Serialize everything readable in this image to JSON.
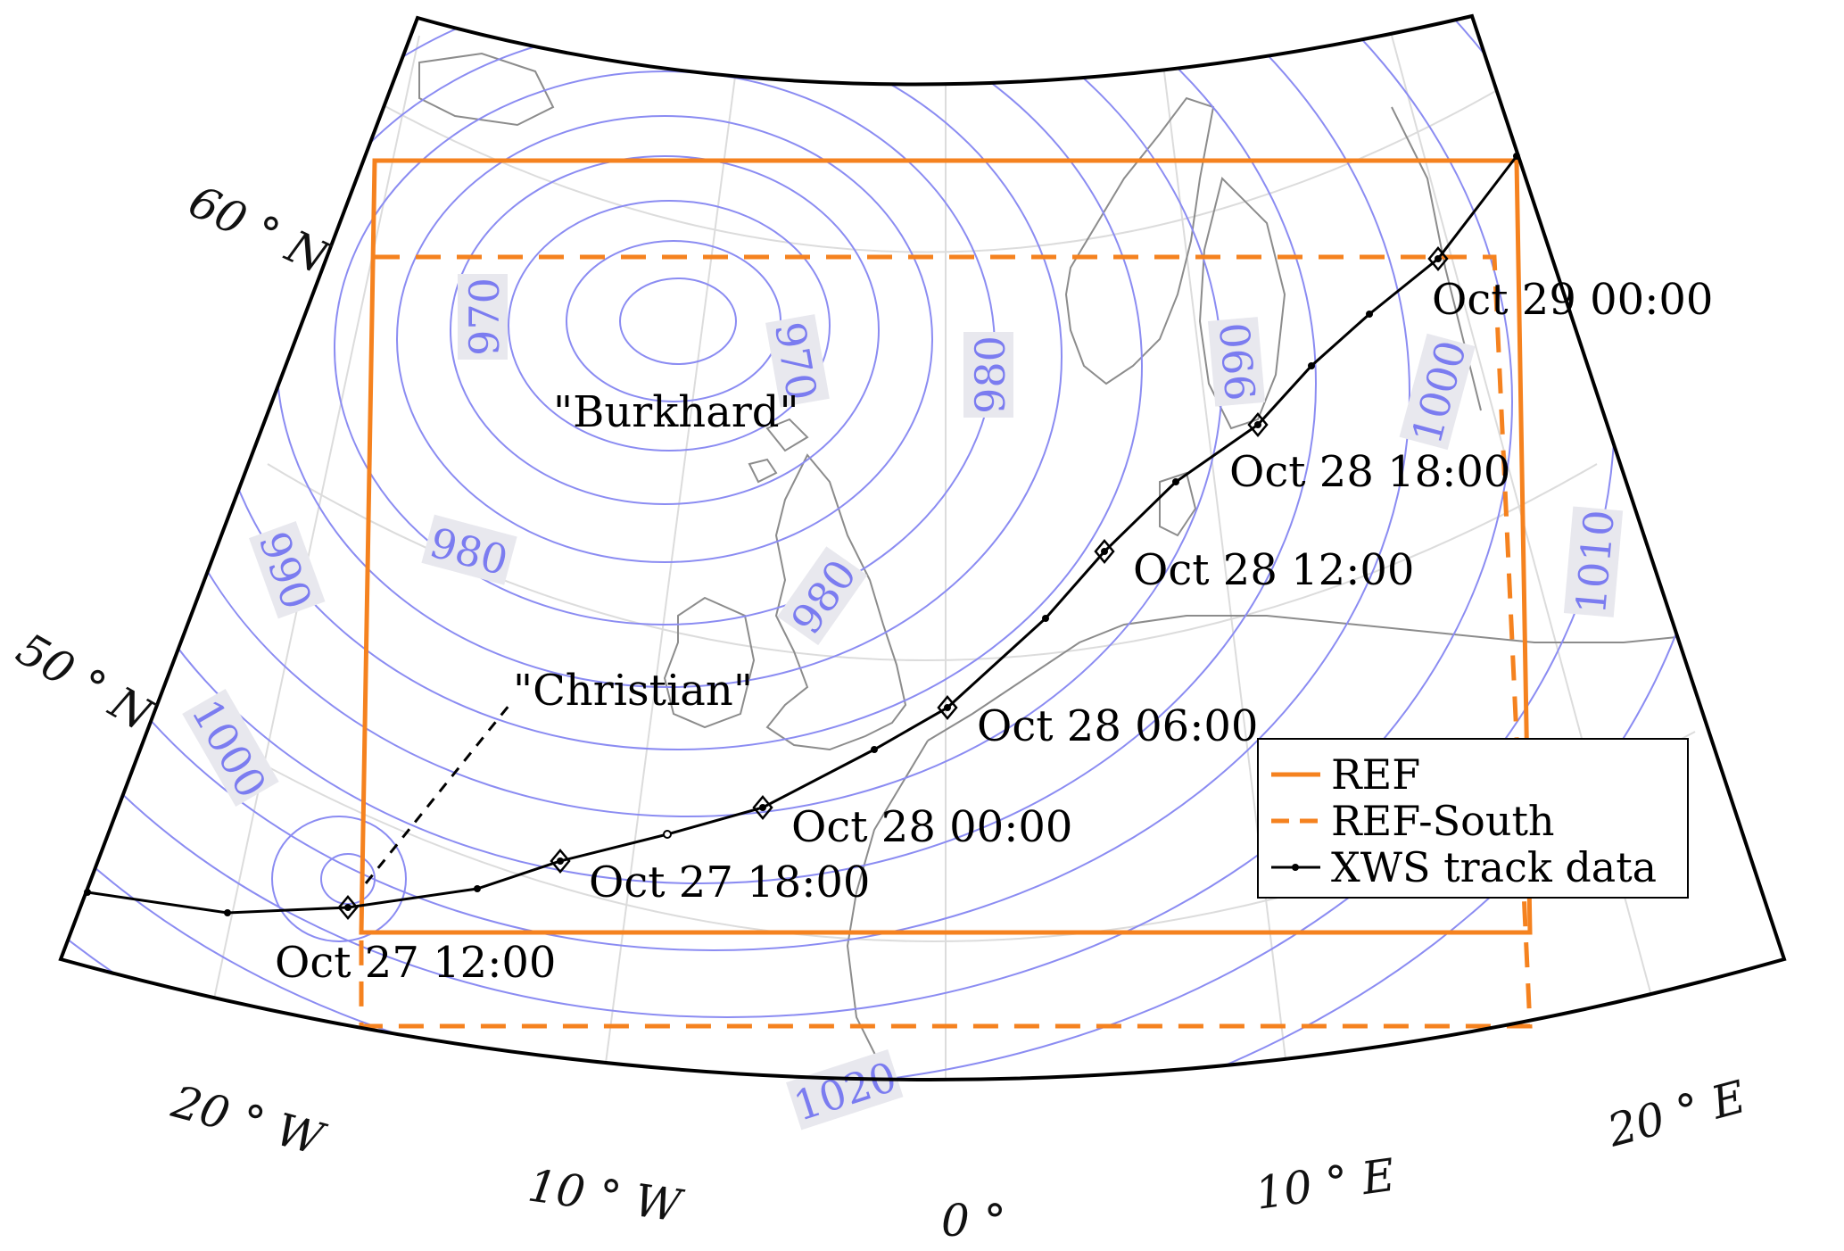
{
  "colors": {
    "isobar": "#8b8cf2",
    "isobar_label": "#7b7cf0",
    "isobar_label_bg": "#e8e8ee",
    "ref_box": "#f5821f",
    "track": "#000000",
    "coast": "#8c8c8c",
    "graticule": "#dcdcdc"
  },
  "graticule_labels": {
    "lat_60": "60 ° N",
    "lat_50": "50 ° N",
    "lon_20w": "20 ° W",
    "lon_10w": "10 ° W",
    "lon_0": "0 °",
    "lon_10e": "10 ° E",
    "lon_20e": "20 ° E"
  },
  "storms": {
    "burkhard": "\"Burkhard\"",
    "christian": "\"Christian\""
  },
  "track_times": {
    "t0": "Oct 27 12:00",
    "t1": "Oct 27 18:00",
    "t2": "Oct 28 00:00",
    "t3": "Oct 28 06:00",
    "t4": "Oct 28 12:00",
    "t5": "Oct 28 18:00",
    "t6": "Oct 29 00:00"
  },
  "isobar_labels": {
    "l970a": "970",
    "l970b": "970",
    "l980a": "980",
    "l980b": "980",
    "l980c": "980",
    "l990a": "990",
    "l990b": "990",
    "l1000a": "1000",
    "l1000b": "1000",
    "l1010": "1010",
    "l1020": "1020"
  },
  "legend": {
    "ref": "REF",
    "ref_south": "REF-South",
    "track": "XWS track data"
  }
}
